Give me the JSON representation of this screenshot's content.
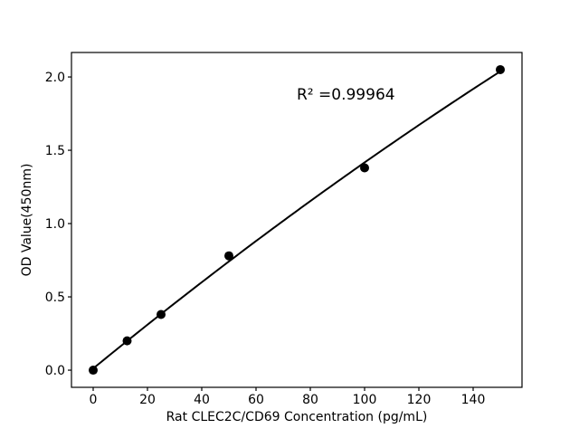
{
  "figure": {
    "background": "#ffffff",
    "foreground": "#000000"
  },
  "chart_data": {
    "type": "scatter",
    "title": "",
    "annotation": "R² =0.99964",
    "xlabel": "Rat CLEC2C/CD69 Concentration (pg/mL)",
    "ylabel": "OD Value(450nm)",
    "x_ticks": [
      "0",
      "20",
      "40",
      "60",
      "80",
      "100",
      "120",
      "140"
    ],
    "x_tick_values": [
      0,
      20,
      40,
      60,
      80,
      100,
      120,
      140
    ],
    "y_ticks": [
      "0.0",
      "0.5",
      "1.0",
      "1.5",
      "2.0"
    ],
    "y_tick_values": [
      0.0,
      0.5,
      1.0,
      1.5,
      2.0
    ],
    "xlim": [
      -8,
      158
    ],
    "ylim": [
      -0.117,
      2.167
    ],
    "grid": false,
    "legend": null,
    "series": [
      {
        "name": "standard-points",
        "type": "scatter",
        "marker": "circle",
        "marker_radius": 5,
        "color": "#000000",
        "points": [
          {
            "x": 0,
            "y": 0.0
          },
          {
            "x": 12.5,
            "y": 0.2
          },
          {
            "x": 25,
            "y": 0.38
          },
          {
            "x": 50,
            "y": 0.78
          },
          {
            "x": 100,
            "y": 1.38
          },
          {
            "x": 150,
            "y": 2.05
          }
        ]
      },
      {
        "name": "fit-curve",
        "type": "line",
        "color": "#000000",
        "line_width": 2,
        "fit": {
          "kind": "quadratic",
          "a0": 0.0115,
          "a1": 0.015142,
          "a2": -1.089e-05,
          "x_start": 0,
          "x_end": 150
        }
      }
    ]
  }
}
